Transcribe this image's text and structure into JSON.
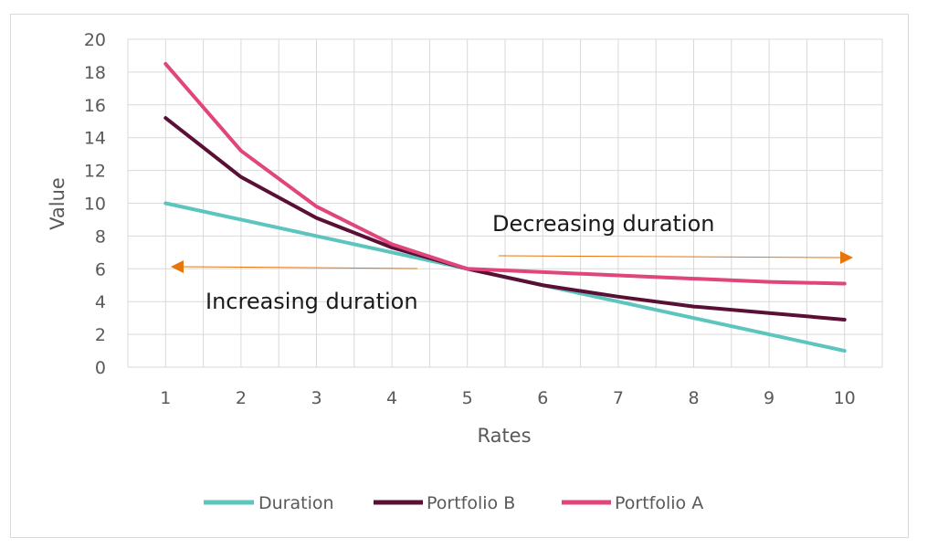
{
  "chart_data": {
    "type": "line",
    "xlabel": "Rates",
    "ylabel": "Value",
    "x": [
      1,
      2,
      3,
      4,
      5,
      6,
      7,
      8,
      9,
      10
    ],
    "ylim": [
      0,
      20
    ],
    "yticks": [
      0,
      2,
      4,
      6,
      8,
      10,
      12,
      14,
      16,
      18,
      20
    ],
    "grid": true,
    "legend_position": "bottom",
    "series": [
      {
        "name": "Duration",
        "color": "#5bc5be",
        "values": [
          10,
          9,
          8,
          7,
          6,
          5,
          4,
          3,
          2,
          1
        ]
      },
      {
        "name": "Portfolio B",
        "color": "#5a0f35",
        "values": [
          15.2,
          11.6,
          9.1,
          7.3,
          6.0,
          5.0,
          4.3,
          3.7,
          3.3,
          2.9
        ]
      },
      {
        "name": "Portfolio A",
        "color": "#e0457b",
        "values": [
          18.5,
          13.2,
          9.8,
          7.5,
          6.0,
          5.8,
          5.6,
          5.4,
          5.2,
          5.1
        ]
      }
    ],
    "annotations": [
      {
        "text": "Decreasing duration",
        "arrow_color": "#e8740c",
        "direction": "right"
      },
      {
        "text": "Increasing duration",
        "arrow_color": "#e8740c",
        "direction": "left"
      }
    ]
  }
}
